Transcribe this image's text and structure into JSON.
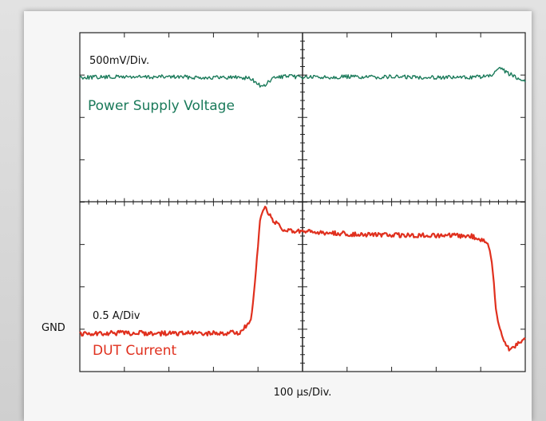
{
  "chart_data": {
    "type": "line",
    "title": "",
    "xlabel": "100 µs/Div.",
    "x_divisions": 10,
    "y_divisions": 8,
    "grid": false,
    "series": [
      {
        "name": "Power Supply Voltage",
        "scale_label": "500mV/Div.",
        "color": "#1a7a5a",
        "x_div": [
          0,
          0.5,
          1,
          1.5,
          2,
          2.5,
          3,
          3.5,
          3.8,
          4.0,
          4.1,
          4.2,
          4.35,
          4.6,
          5.0,
          5.5,
          6,
          6.5,
          7,
          7.5,
          8,
          8.5,
          9,
          9.2,
          9.45,
          9.6,
          9.8,
          10
        ],
        "y_div": [
          6.95,
          6.95,
          6.96,
          6.95,
          6.96,
          6.95,
          6.94,
          6.95,
          6.93,
          6.8,
          6.7,
          6.8,
          6.93,
          6.97,
          6.95,
          6.95,
          6.96,
          6.95,
          6.96,
          6.95,
          6.95,
          6.94,
          6.96,
          6.97,
          7.15,
          7.05,
          6.95,
          6.86
        ]
      },
      {
        "name": "DUT Current",
        "scale_label": "0.5 A/Div",
        "color": "#e0301e",
        "x_div": [
          0,
          0.5,
          1,
          2,
          3,
          3.6,
          3.85,
          3.95,
          4.05,
          4.15,
          4.35,
          4.6,
          5,
          6,
          7,
          8,
          8.8,
          9.15,
          9.25,
          9.35,
          9.5,
          9.65,
          9.75,
          9.9,
          10
        ],
        "y_div": [
          0.9,
          0.9,
          0.91,
          0.9,
          0.9,
          0.92,
          1.2,
          2.3,
          3.6,
          3.9,
          3.55,
          3.32,
          3.3,
          3.25,
          3.22,
          3.21,
          3.2,
          3.05,
          2.6,
          1.4,
          0.75,
          0.52,
          0.6,
          0.72,
          0.76
        ]
      }
    ],
    "annotations": {
      "gnd_label": "GND"
    }
  }
}
